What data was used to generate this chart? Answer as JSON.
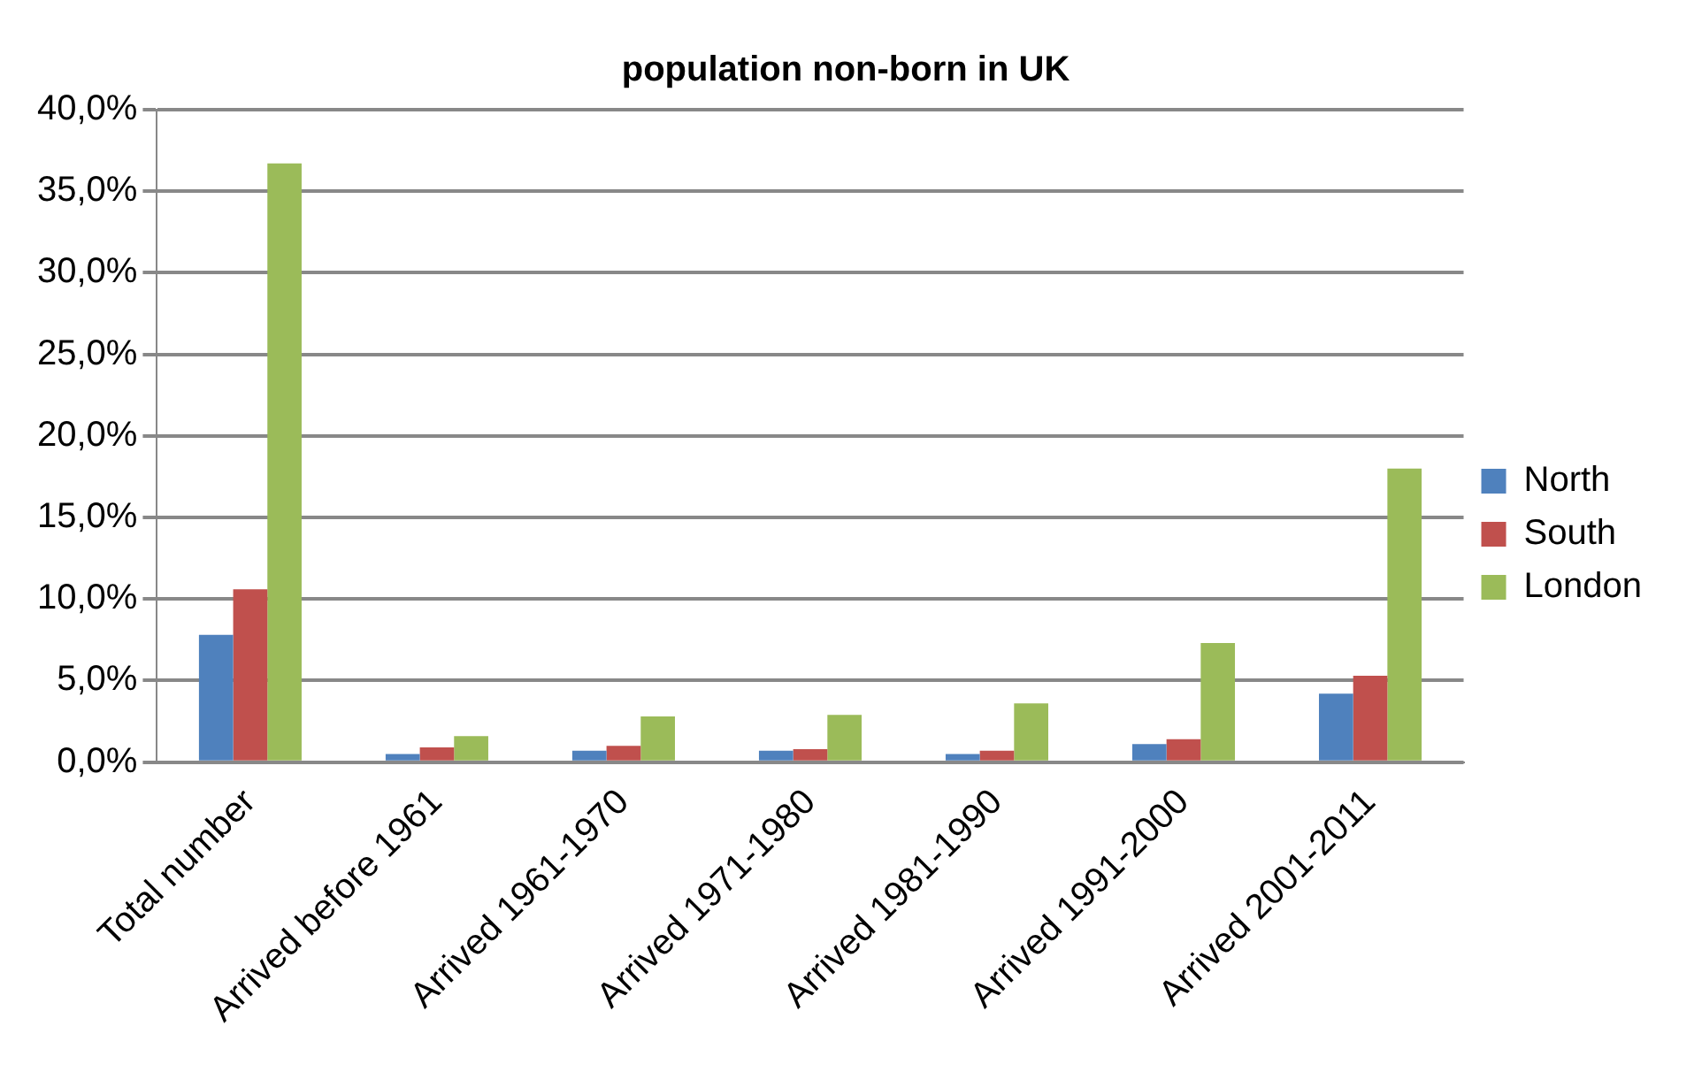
{
  "chart_data": {
    "type": "bar",
    "title": "population non-born in UK",
    "categories": [
      "Total number",
      "Arrived before 1961",
      "Arrived 1961-1970",
      "Arrived 1971-1980",
      "Arrived 1981-1990",
      "Arrived 1991-2000",
      "Arrived 2001-2011"
    ],
    "series": [
      {
        "name": "North",
        "color": "#4f81bd",
        "values": [
          7.8,
          0.5,
          0.7,
          0.7,
          0.5,
          1.1,
          4.2
        ]
      },
      {
        "name": "South",
        "color": "#c0504d",
        "values": [
          10.6,
          0.9,
          1.0,
          0.8,
          0.7,
          1.4,
          5.3
        ]
      },
      {
        "name": "London",
        "color": "#9bbb59",
        "values": [
          36.7,
          1.6,
          2.8,
          2.9,
          3.6,
          7.3,
          18.0
        ]
      }
    ],
    "ylim": [
      0,
      40
    ],
    "yticks": [
      {
        "value": 0,
        "label": "0,0%"
      },
      {
        "value": 5,
        "label": "5,0%"
      },
      {
        "value": 10,
        "label": "10,0%"
      },
      {
        "value": 15,
        "label": "15,0%"
      },
      {
        "value": 20,
        "label": "20,0%"
      },
      {
        "value": 25,
        "label": "25,0%"
      },
      {
        "value": 30,
        "label": "30,0%"
      },
      {
        "value": 35,
        "label": "35,0%"
      },
      {
        "value": 40,
        "label": "40,0%"
      }
    ],
    "grid": "y",
    "legend": "right"
  }
}
